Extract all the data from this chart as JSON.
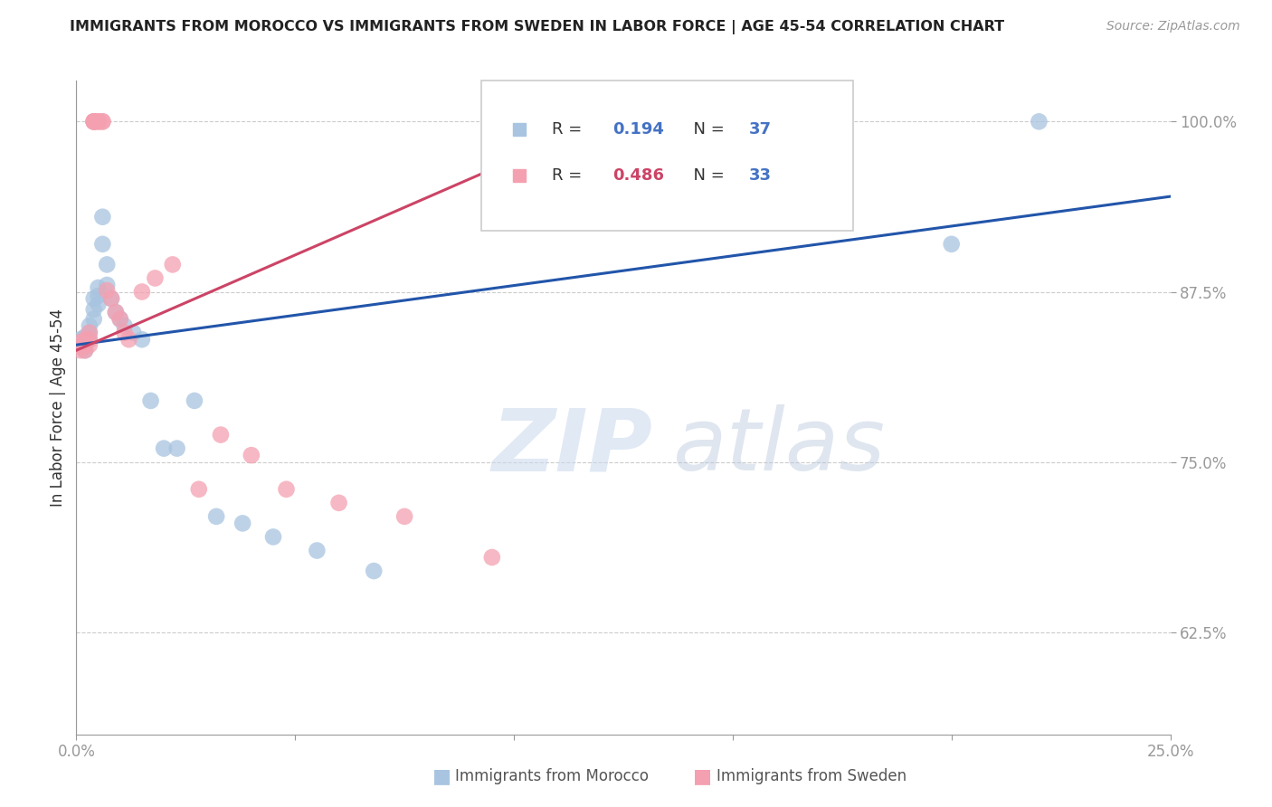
{
  "title": "IMMIGRANTS FROM MOROCCO VS IMMIGRANTS FROM SWEDEN IN LABOR FORCE | AGE 45-54 CORRELATION CHART",
  "source": "Source: ZipAtlas.com",
  "ylabel": "In Labor Force | Age 45-54",
  "xlim": [
    0.0,
    0.25
  ],
  "ylim": [
    0.55,
    1.03
  ],
  "xticks": [
    0.0,
    0.05,
    0.1,
    0.15,
    0.2,
    0.25
  ],
  "xticklabels": [
    "0.0%",
    "",
    "",
    "",
    "",
    "25.0%"
  ],
  "yticks": [
    0.625,
    0.75,
    0.875,
    1.0
  ],
  "yticklabels": [
    "62.5%",
    "75.0%",
    "87.5%",
    "100.0%"
  ],
  "blue_R": 0.194,
  "blue_N": 37,
  "pink_R": 0.486,
  "pink_N": 33,
  "blue_color": "#a8c4e0",
  "pink_color": "#f4a0b0",
  "blue_line_color": "#2255aa",
  "pink_line_color": "#cc4466",
  "legend_label_blue": "Immigrants from Morocco",
  "legend_label_pink": "Immigrants from Sweden",
  "blue_x": [
    0.001,
    0.001,
    0.001,
    0.002,
    0.002,
    0.002,
    0.002,
    0.003,
    0.003,
    0.003,
    0.004,
    0.004,
    0.004,
    0.005,
    0.005,
    0.005,
    0.006,
    0.006,
    0.007,
    0.007,
    0.008,
    0.009,
    0.01,
    0.011,
    0.013,
    0.015,
    0.017,
    0.02,
    0.023,
    0.027,
    0.032,
    0.038,
    0.045,
    0.055,
    0.068,
    0.2,
    0.22
  ],
  "blue_y": [
    0.84,
    0.838,
    0.835,
    0.842,
    0.838,
    0.836,
    0.832,
    0.85,
    0.845,
    0.84,
    0.87,
    0.862,
    0.855,
    0.878,
    0.872,
    0.866,
    0.93,
    0.91,
    0.895,
    0.88,
    0.87,
    0.86,
    0.855,
    0.85,
    0.845,
    0.84,
    0.795,
    0.76,
    0.76,
    0.795,
    0.71,
    0.705,
    0.695,
    0.685,
    0.67,
    0.91,
    1.0
  ],
  "pink_x": [
    0.001,
    0.001,
    0.001,
    0.002,
    0.002,
    0.002,
    0.003,
    0.003,
    0.003,
    0.004,
    0.004,
    0.004,
    0.004,
    0.005,
    0.005,
    0.006,
    0.006,
    0.007,
    0.008,
    0.009,
    0.01,
    0.011,
    0.012,
    0.015,
    0.018,
    0.022,
    0.028,
    0.033,
    0.04,
    0.048,
    0.06,
    0.075,
    0.095
  ],
  "pink_y": [
    0.838,
    0.835,
    0.832,
    0.84,
    0.836,
    0.832,
    0.845,
    0.84,
    0.836,
    1.0,
    1.0,
    1.0,
    1.0,
    1.0,
    1.0,
    1.0,
    1.0,
    0.876,
    0.87,
    0.86,
    0.855,
    0.845,
    0.84,
    0.875,
    0.885,
    0.895,
    0.73,
    0.77,
    0.755,
    0.73,
    0.72,
    0.71,
    0.68
  ],
  "blue_line_x": [
    0.0,
    0.25
  ],
  "blue_line_y": [
    0.836,
    0.945
  ],
  "pink_line_x": [
    0.0,
    0.12
  ],
  "pink_line_y": [
    0.832,
    1.0
  ]
}
